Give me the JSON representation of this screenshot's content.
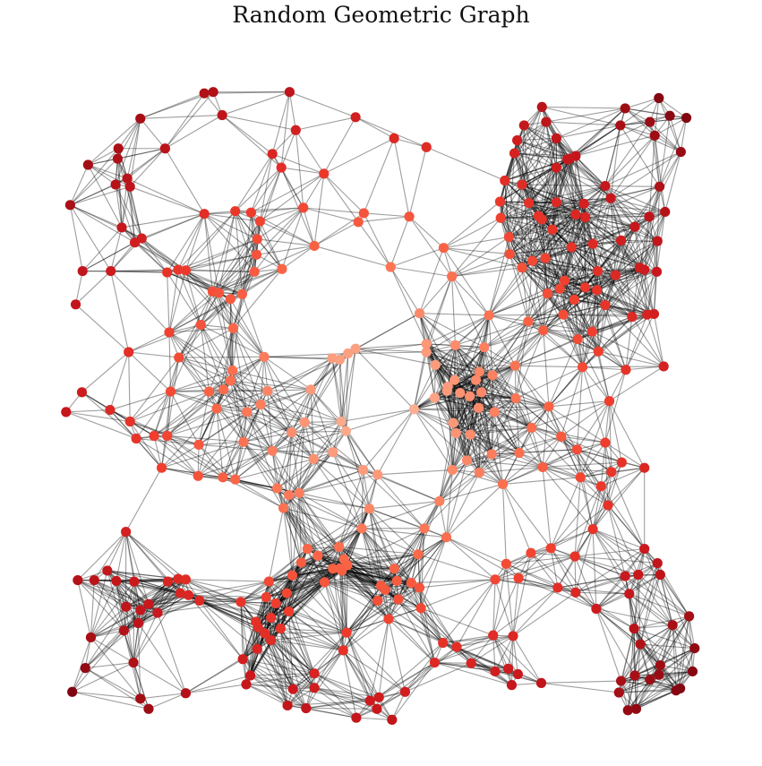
{
  "title": "Random Geometric Graph",
  "colors": {
    "edge": "#000000",
    "background": "#ffffff",
    "node_scale": [
      "#fff5f0",
      "#fcbba1",
      "#fc9272",
      "#fb6a4a",
      "#ef3b2c",
      "#cb181d",
      "#a50f15",
      "#67000d"
    ]
  },
  "chart_data": {
    "type": "scatter",
    "graph_kind": "random geometric graph",
    "colormap": "Reds",
    "axes_visible": false,
    "node_color_meaning": "distance from center (lighter = closer)",
    "xlim": [
      0,
      1
    ],
    "ylim": [
      0,
      1
    ],
    "connection_radius": 0.125,
    "nodes": [
      [
        0.245,
        0.955
      ],
      [
        0.258,
        0.957
      ],
      [
        0.369,
        0.957
      ],
      [
        0.152,
        0.918
      ],
      [
        0.271,
        0.923
      ],
      [
        0.378,
        0.901
      ],
      [
        0.465,
        0.92
      ],
      [
        0.521,
        0.889
      ],
      [
        0.568,
        0.876
      ],
      [
        0.188,
        0.874
      ],
      [
        0.12,
        0.874
      ],
      [
        0.344,
        0.866
      ],
      [
        0.076,
        0.85
      ],
      [
        0.119,
        0.859
      ],
      [
        0.133,
        0.83
      ],
      [
        0.357,
        0.846
      ],
      [
        0.419,
        0.837
      ],
      [
        0.05,
        0.791
      ],
      [
        0.116,
        0.821
      ],
      [
        0.137,
        0.818
      ],
      [
        0.245,
        0.778
      ],
      [
        0.29,
        0.782
      ],
      [
        0.313,
        0.78
      ],
      [
        0.326,
        0.767
      ],
      [
        0.125,
        0.758
      ],
      [
        0.154,
        0.742
      ],
      [
        0.144,
        0.736
      ],
      [
        0.389,
        0.787
      ],
      [
        0.068,
        0.694
      ],
      [
        0.109,
        0.694
      ],
      [
        0.191,
        0.692
      ],
      [
        0.207,
        0.696
      ],
      [
        0.218,
        0.695
      ],
      [
        0.322,
        0.741
      ],
      [
        0.405,
        0.731
      ],
      [
        0.477,
        0.779
      ],
      [
        0.469,
        0.766
      ],
      [
        0.543,
        0.774
      ],
      [
        0.516,
        0.7
      ],
      [
        0.593,
        0.728
      ],
      [
        0.605,
        0.686
      ],
      [
        0.558,
        0.632
      ],
      [
        0.257,
        0.664
      ],
      [
        0.283,
        0.653
      ],
      [
        0.3,
        0.66
      ],
      [
        0.318,
        0.693
      ],
      [
        0.358,
        0.697
      ],
      [
        0.321,
        0.718
      ],
      [
        0.266,
        0.662
      ],
      [
        0.058,
        0.645
      ],
      [
        0.194,
        0.604
      ],
      [
        0.24,
        0.615
      ],
      [
        0.287,
        0.61
      ],
      [
        0.135,
        0.575
      ],
      [
        0.208,
        0.567
      ],
      [
        0.286,
        0.548
      ],
      [
        0.332,
        0.568
      ],
      [
        0.442,
        0.564
      ],
      [
        0.465,
        0.58
      ],
      [
        0.454,
        0.573
      ],
      [
        0.283,
        0.533
      ],
      [
        0.337,
        0.518
      ],
      [
        0.273,
        0.52
      ],
      [
        0.4,
        0.52
      ],
      [
        0.431,
        0.566
      ],
      [
        0.067,
        0.516
      ],
      [
        0.044,
        0.487
      ],
      [
        0.108,
        0.49
      ],
      [
        0.137,
        0.473
      ],
      [
        0.196,
        0.517
      ],
      [
        0.252,
        0.517
      ],
      [
        0.263,
        0.492
      ],
      [
        0.307,
        0.487
      ],
      [
        0.327,
        0.498
      ],
      [
        0.391,
        0.472
      ],
      [
        0.444,
        0.473
      ],
      [
        0.451,
        0.459
      ],
      [
        0.372,
        0.457
      ],
      [
        0.146,
        0.448
      ],
      [
        0.172,
        0.452
      ],
      [
        0.191,
        0.452
      ],
      [
        0.237,
        0.439
      ],
      [
        0.302,
        0.443
      ],
      [
        0.344,
        0.43
      ],
      [
        0.404,
        0.418
      ],
      [
        0.183,
        0.405
      ],
      [
        0.236,
        0.393
      ],
      [
        0.272,
        0.391
      ],
      [
        0.29,
        0.388
      ],
      [
        0.351,
        0.375
      ],
      [
        0.368,
        0.365
      ],
      [
        0.36,
        0.346
      ],
      [
        0.383,
        0.368
      ],
      [
        0.432,
        0.428
      ],
      [
        0.476,
        0.402
      ],
      [
        0.497,
        0.395
      ],
      [
        0.55,
        0.491
      ],
      [
        0.58,
        0.508
      ],
      [
        0.599,
        0.524
      ],
      [
        0.609,
        0.534
      ],
      [
        0.581,
        0.556
      ],
      [
        0.568,
        0.575
      ],
      [
        0.598,
        0.518
      ],
      [
        0.568,
        0.587
      ],
      [
        0.61,
        0.585
      ],
      [
        0.64,
        0.534
      ],
      [
        0.645,
        0.546
      ],
      [
        0.631,
        0.51
      ],
      [
        0.644,
        0.493
      ],
      [
        0.667,
        0.487
      ],
      [
        0.611,
        0.456
      ],
      [
        0.627,
        0.416
      ],
      [
        0.663,
        0.425
      ],
      [
        0.703,
        0.427
      ],
      [
        0.606,
        0.402
      ],
      [
        0.645,
        0.398
      ],
      [
        0.679,
        0.381
      ],
      [
        0.587,
        0.356
      ],
      [
        0.565,
        0.316
      ],
      [
        0.597,
        0.303
      ],
      [
        0.131,
        0.311
      ],
      [
        0.104,
        0.254
      ],
      [
        0.061,
        0.24
      ],
      [
        0.085,
        0.24
      ],
      [
        0.117,
        0.239
      ],
      [
        0.143,
        0.238
      ],
      [
        0.192,
        0.238
      ],
      [
        0.207,
        0.242
      ],
      [
        0.218,
        0.241
      ],
      [
        0.238,
        0.21
      ],
      [
        0.131,
        0.201
      ],
      [
        0.152,
        0.196
      ],
      [
        0.177,
        0.192
      ],
      [
        0.222,
        0.218
      ],
      [
        0.21,
        0.221
      ],
      [
        0.164,
        0.205
      ],
      [
        0.149,
        0.177
      ],
      [
        0.08,
        0.156
      ],
      [
        0.128,
        0.166
      ],
      [
        0.072,
        0.111
      ],
      [
        0.142,
        0.119
      ],
      [
        0.053,
        0.076
      ],
      [
        0.152,
        0.066
      ],
      [
        0.164,
        0.051
      ],
      [
        0.218,
        0.074
      ],
      [
        0.298,
        0.208
      ],
      [
        0.335,
        0.215
      ],
      [
        0.339,
        0.238
      ],
      [
        0.32,
        0.179
      ],
      [
        0.342,
        0.152
      ],
      [
        0.368,
        0.194
      ],
      [
        0.356,
        0.169
      ],
      [
        0.323,
        0.171
      ],
      [
        0.312,
        0.1
      ],
      [
        0.301,
        0.124
      ],
      [
        0.322,
        0.139
      ],
      [
        0.333,
        0.162
      ],
      [
        0.342,
        0.185
      ],
      [
        0.349,
        0.206
      ],
      [
        0.365,
        0.221
      ],
      [
        0.373,
        0.247
      ],
      [
        0.386,
        0.266
      ],
      [
        0.395,
        0.286
      ],
      [
        0.42,
        0.237
      ],
      [
        0.41,
        0.276
      ],
      [
        0.432,
        0.257
      ],
      [
        0.441,
        0.289
      ],
      [
        0.442,
        0.257
      ],
      [
        0.448,
        0.271
      ],
      [
        0.453,
        0.262
      ],
      [
        0.445,
        0.254
      ],
      [
        0.474,
        0.316
      ],
      [
        0.485,
        0.345
      ],
      [
        0.508,
        0.226
      ],
      [
        0.556,
        0.278
      ],
      [
        0.521,
        0.257
      ],
      [
        0.525,
        0.239
      ],
      [
        0.546,
        0.236
      ],
      [
        0.513,
        0.183
      ],
      [
        0.452,
        0.163
      ],
      [
        0.497,
        0.21
      ],
      [
        0.502,
        0.232
      ],
      [
        0.527,
        0.212
      ],
      [
        0.56,
        0.199
      ],
      [
        0.558,
        0.229
      ],
      [
        0.306,
        0.087
      ],
      [
        0.374,
        0.08
      ],
      [
        0.393,
        0.052
      ],
      [
        0.366,
        0.056
      ],
      [
        0.405,
        0.082
      ],
      [
        0.405,
        0.103
      ],
      [
        0.447,
        0.137
      ],
      [
        0.499,
        0.068
      ],
      [
        0.486,
        0.063
      ],
      [
        0.537,
        0.076
      ],
      [
        0.496,
        0.051
      ],
      [
        0.466,
        0.038
      ],
      [
        0.518,
        0.035
      ],
      [
        0.58,
        0.119
      ],
      [
        0.612,
        0.142
      ],
      [
        0.592,
        0.148
      ],
      [
        0.633,
        0.118
      ],
      [
        0.668,
        0.106
      ],
      [
        0.692,
        0.086
      ],
      [
        0.687,
        0.11
      ],
      [
        0.701,
        0.102
      ],
      [
        0.735,
        0.089
      ],
      [
        0.665,
        0.159
      ],
      [
        0.694,
        0.158
      ],
      [
        0.668,
        0.241
      ],
      [
        0.702,
        0.243
      ],
      [
        0.684,
        0.264
      ],
      [
        0.72,
        0.28
      ],
      [
        0.749,
        0.287
      ],
      [
        0.784,
        0.275
      ],
      [
        0.759,
        0.229
      ],
      [
        0.785,
        0.222
      ],
      [
        0.815,
        0.198
      ],
      [
        0.87,
        0.169
      ],
      [
        0.879,
        0.146
      ],
      [
        0.908,
        0.115
      ],
      [
        0.906,
        0.101
      ],
      [
        0.873,
        0.051
      ],
      [
        0.861,
        0.049
      ],
      [
        0.848,
        0.075
      ],
      [
        0.851,
        0.092
      ],
      [
        0.871,
        0.1
      ],
      [
        0.893,
        0.094
      ],
      [
        0.931,
        0.078
      ],
      [
        0.937,
        0.081
      ],
      [
        0.955,
        0.106
      ],
      [
        0.958,
        0.14
      ],
      [
        0.95,
        0.187
      ],
      [
        0.926,
        0.174
      ],
      [
        0.863,
        0.22
      ],
      [
        0.857,
        0.246
      ],
      [
        0.876,
        0.248
      ],
      [
        0.908,
        0.248
      ],
      [
        0.885,
        0.286
      ],
      [
        0.904,
        0.265
      ],
      [
        0.81,
        0.315
      ],
      [
        0.832,
        0.35
      ],
      [
        0.852,
        0.413
      ],
      [
        0.885,
        0.405
      ],
      [
        0.822,
        0.378
      ],
      [
        0.837,
        0.399
      ],
      [
        0.828,
        0.442
      ],
      [
        0.834,
        0.503
      ],
      [
        0.818,
        0.576
      ],
      [
        0.795,
        0.553
      ],
      [
        0.746,
        0.495
      ],
      [
        0.721,
        0.464
      ],
      [
        0.764,
        0.451
      ],
      [
        0.787,
        0.432
      ],
      [
        0.792,
        0.391
      ],
      [
        0.737,
        0.406
      ],
      [
        0.858,
        0.549
      ],
      [
        0.913,
        0.554
      ],
      [
        0.889,
        0.63
      ],
      [
        0.899,
        0.631
      ],
      [
        0.867,
        0.627
      ],
      [
        0.809,
        0.605
      ],
      [
        0.828,
        0.644
      ],
      [
        0.843,
        0.688
      ],
      [
        0.878,
        0.699
      ],
      [
        0.885,
        0.696
      ],
      [
        0.903,
        0.693
      ],
      [
        0.904,
        0.738
      ],
      [
        0.816,
        0.666
      ],
      [
        0.817,
        0.694
      ],
      [
        0.81,
        0.734
      ],
      [
        0.851,
        0.739
      ],
      [
        0.892,
        0.774
      ],
      [
        0.779,
        0.729
      ],
      [
        0.751,
        0.755
      ],
      [
        0.799,
        0.773
      ],
      [
        0.828,
        0.819
      ],
      [
        0.836,
        0.801
      ],
      [
        0.871,
        0.759
      ],
      [
        0.915,
        0.781
      ],
      [
        0.907,
        0.818
      ],
      [
        0.938,
        0.869
      ],
      [
        0.9,
        0.893
      ],
      [
        0.893,
        0.913
      ],
      [
        0.946,
        0.919
      ],
      [
        0.922,
        0.922
      ],
      [
        0.906,
        0.948
      ],
      [
        0.857,
        0.933
      ],
      [
        0.85,
        0.908
      ],
      [
        0.757,
        0.889
      ],
      [
        0.736,
        0.935
      ],
      [
        0.785,
        0.863
      ],
      [
        0.773,
        0.858
      ],
      [
        0.742,
        0.913
      ],
      [
        0.71,
        0.908
      ],
      [
        0.7,
        0.886
      ],
      [
        0.696,
        0.867
      ],
      [
        0.682,
        0.827
      ],
      [
        0.675,
        0.796
      ],
      [
        0.676,
        0.772
      ],
      [
        0.717,
        0.794
      ],
      [
        0.757,
        0.795
      ],
      [
        0.785,
        0.777
      ],
      [
        0.757,
        0.846
      ],
      [
        0.797,
        0.793
      ],
      [
        0.776,
        0.859
      ],
      [
        0.707,
        0.821
      ],
      [
        0.731,
        0.775
      ],
      [
        0.688,
        0.744
      ],
      [
        0.689,
        0.719
      ],
      [
        0.762,
        0.668
      ],
      [
        0.744,
        0.661
      ],
      [
        0.783,
        0.652
      ],
      [
        0.767,
        0.63
      ],
      [
        0.788,
        0.594
      ],
      [
        0.659,
        0.629
      ],
      [
        0.652,
        0.582
      ],
      [
        0.697,
        0.555
      ],
      [
        0.698,
        0.507
      ],
      [
        0.648,
        0.516
      ],
      [
        0.617,
        0.515
      ],
      [
        0.664,
        0.541
      ],
      [
        0.632,
        0.454
      ],
      [
        0.607,
        0.471
      ],
      [
        0.716,
        0.62
      ],
      [
        0.738,
        0.607
      ],
      [
        0.799,
        0.67
      ],
      [
        0.769,
        0.68
      ],
      [
        0.722,
        0.709
      ],
      [
        0.707,
        0.699
      ],
      [
        0.741,
        0.713
      ],
      [
        0.736,
        0.77
      ]
    ]
  }
}
